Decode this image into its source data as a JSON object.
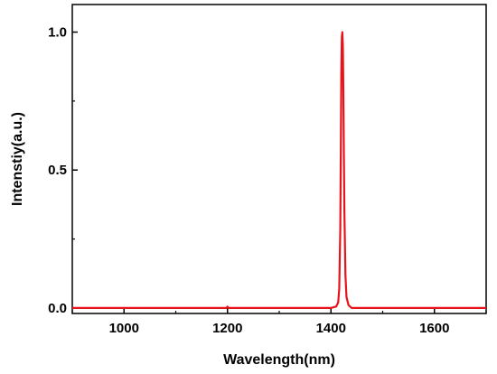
{
  "chart_data": {
    "type": "line",
    "title": "",
    "xlabel": "Wavelength(nm)",
    "ylabel": "Intenstiy(a.u.)",
    "xlim": [
      900,
      1700
    ],
    "ylim": [
      -0.02,
      1.1
    ],
    "xticks": [
      1000,
      1200,
      1400,
      1600
    ],
    "yticks": [
      0.0,
      0.5,
      1.0
    ],
    "xtick_labels": [
      "1000",
      "1200",
      "1400",
      "1600"
    ],
    "ytick_labels": [
      "0.0",
      "0.5",
      "1.0"
    ],
    "grid": false,
    "legend": "none",
    "series": [
      {
        "color": "#e8141c",
        "x": [
          900,
          1000,
          1100,
          1198,
          1200,
          1202,
          1300,
          1400,
          1410,
          1414,
          1416,
          1418,
          1419,
          1420,
          1421,
          1422,
          1423,
          1424,
          1425,
          1426,
          1428,
          1430,
          1434,
          1440,
          1500,
          1600,
          1700
        ],
        "y": [
          0.0,
          0.0,
          0.0,
          0.0,
          0.005,
          0.0,
          0.0,
          0.0,
          0.005,
          0.02,
          0.07,
          0.28,
          0.55,
          0.85,
          0.98,
          1.0,
          0.95,
          0.78,
          0.55,
          0.35,
          0.12,
          0.04,
          0.01,
          0.0,
          0.0,
          0.0,
          0.0
        ]
      }
    ]
  }
}
